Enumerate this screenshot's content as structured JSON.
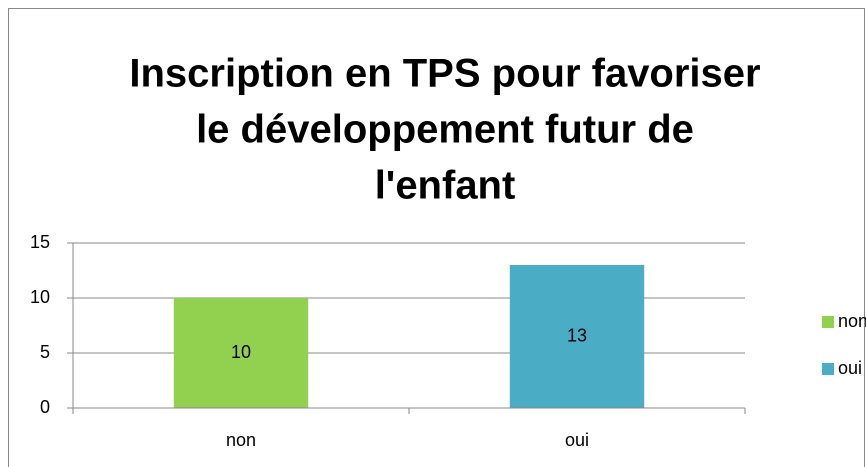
{
  "chart_data": {
    "type": "bar",
    "title": [
      "Inscription en TPS pour favoriser",
      "le développement futur de",
      "l'enfant"
    ],
    "categories": [
      "non",
      "oui"
    ],
    "values": [
      10,
      13
    ],
    "colors": [
      "#92d050",
      "#4bacc6"
    ],
    "ylim": [
      0,
      15
    ],
    "yticks": [
      0,
      5,
      10,
      15
    ],
    "grid": true,
    "legend": "right",
    "data_labels": true
  }
}
